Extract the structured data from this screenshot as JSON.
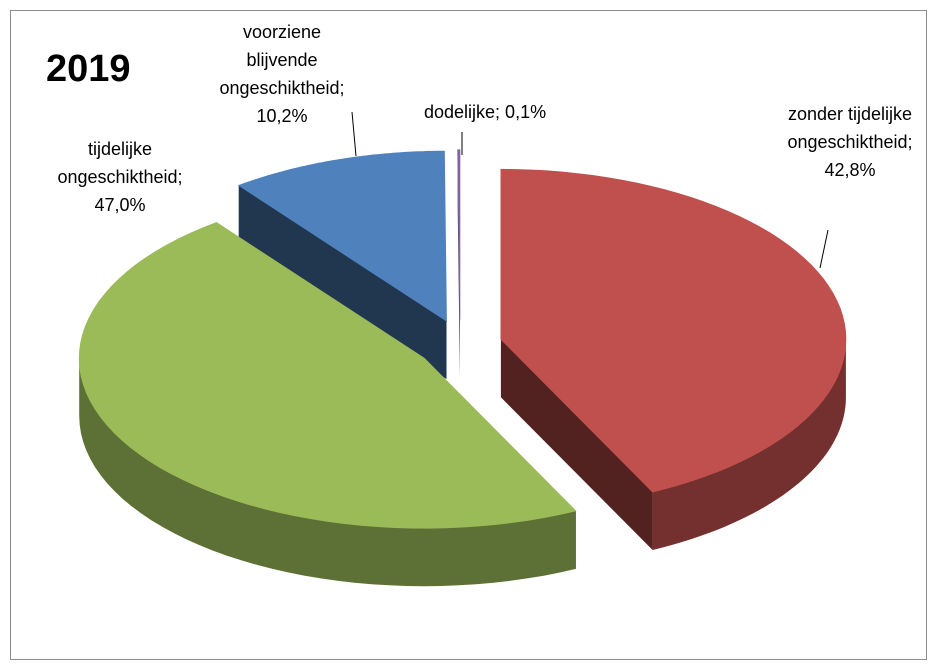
{
  "chart_data": {
    "type": "pie3d",
    "title": "2019",
    "values": [
      42.8,
      47.0,
      10.2,
      0.1
    ],
    "value_labels": [
      "zonder tijdelijke ongeschiktheid; 42,8%",
      "tijdelijke ongeschiktheid; 47,0%",
      "voorziene blijvende ongeschiktheid; 10,2%",
      "dodelijke; 0,1%"
    ],
    "colors": [
      "#c0504d",
      "#9bbb59",
      "#4f81bd",
      "#8064a2"
    ]
  }
}
